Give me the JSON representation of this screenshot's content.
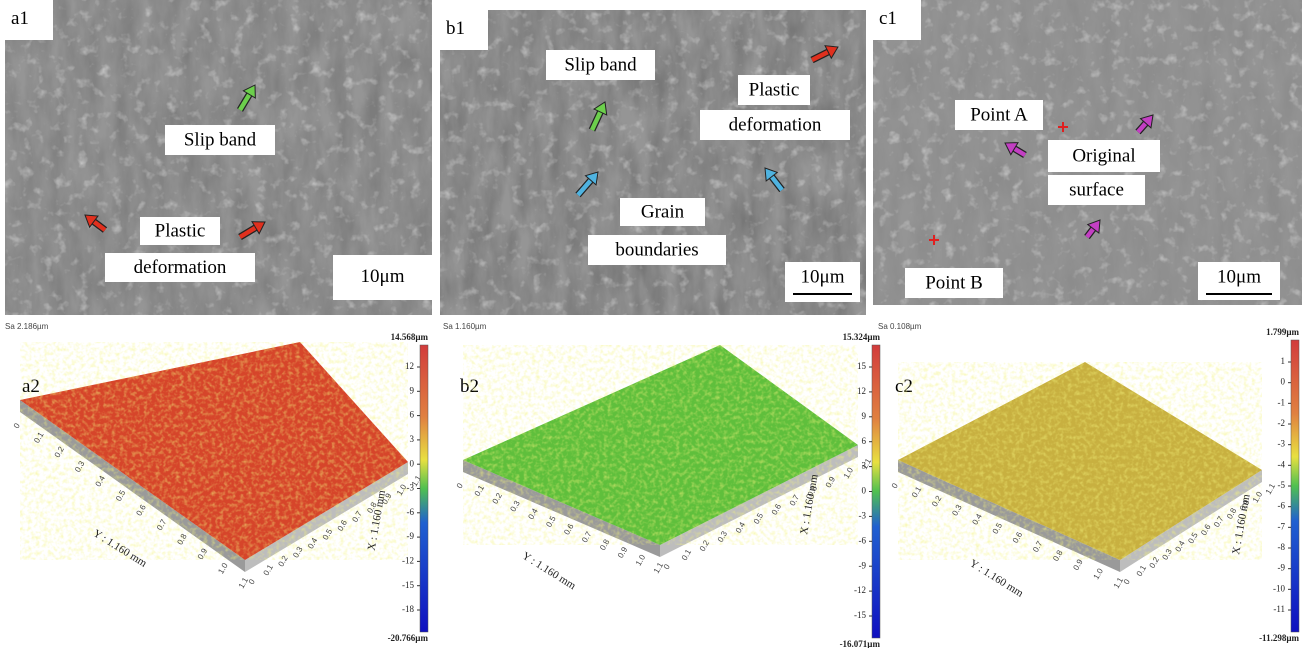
{
  "sem_panels": [
    {
      "label": "a1",
      "annotations": [
        "Slip band",
        "Plastic",
        "deformation"
      ],
      "scale_bar": "10μm"
    },
    {
      "label": "b1",
      "annotations": [
        "Slip band",
        "Plastic",
        "deformation",
        "Grain",
        "boundaries"
      ],
      "scale_bar": "10μm"
    },
    {
      "label": "c1",
      "annotations": [
        "Point A",
        "Original",
        "surface",
        "Point B"
      ],
      "scale_bar": "10μm"
    }
  ],
  "surface_panels": [
    {
      "label": "a2",
      "sa": "Sa 2.186µm",
      "colorbar_max": "14.568µm",
      "colorbar_min": "-20.766µm",
      "colorbar_ticks": [
        "12",
        "9",
        "6",
        "3",
        "0",
        "-3",
        "-6",
        "-9",
        "-12",
        "-15",
        "-18"
      ],
      "y_axis_label": "Y : 1.160 mm",
      "x_axis_label": "X : 1.160 mm",
      "axis_ticks": [
        "0",
        "0.1",
        "0.2",
        "0.3",
        "0.4",
        "0.5",
        "0.6",
        "0.7",
        "0.8",
        "0.9",
        "1.0",
        "1.1"
      ]
    },
    {
      "label": "b2",
      "sa": "Sa 1.160µm",
      "colorbar_max": "15.324µm",
      "colorbar_min": "-16.071µm",
      "colorbar_ticks": [
        "15",
        "12",
        "9",
        "6",
        "3",
        "0",
        "-3",
        "-6",
        "-9",
        "-12",
        "-15"
      ],
      "y_axis_label": "Y : 1.160 mm",
      "x_axis_label": "X : 1.160 mm",
      "axis_ticks": [
        "0",
        "0.1",
        "0.2",
        "0.3",
        "0.4",
        "0.5",
        "0.6",
        "0.7",
        "0.8",
        "0.9",
        "1.0",
        "1.1"
      ]
    },
    {
      "label": "c2",
      "sa": "Sa 0.108µm",
      "colorbar_max": "1.799µm",
      "colorbar_min": "-11.298µm",
      "colorbar_ticks": [
        "1",
        "0",
        "-1",
        "-2",
        "-3",
        "-4",
        "-5",
        "-6",
        "-7",
        "-8",
        "-9",
        "-10",
        "-11"
      ],
      "y_axis_label": "Y : 1.160 mm",
      "x_axis_label": "X : 1.160 mm",
      "axis_ticks": [
        "0",
        "0.1",
        "0.2",
        "0.3",
        "0.4",
        "0.5",
        "0.6",
        "0.7",
        "0.8",
        "0.9",
        "1.0",
        "1.1"
      ]
    }
  ]
}
